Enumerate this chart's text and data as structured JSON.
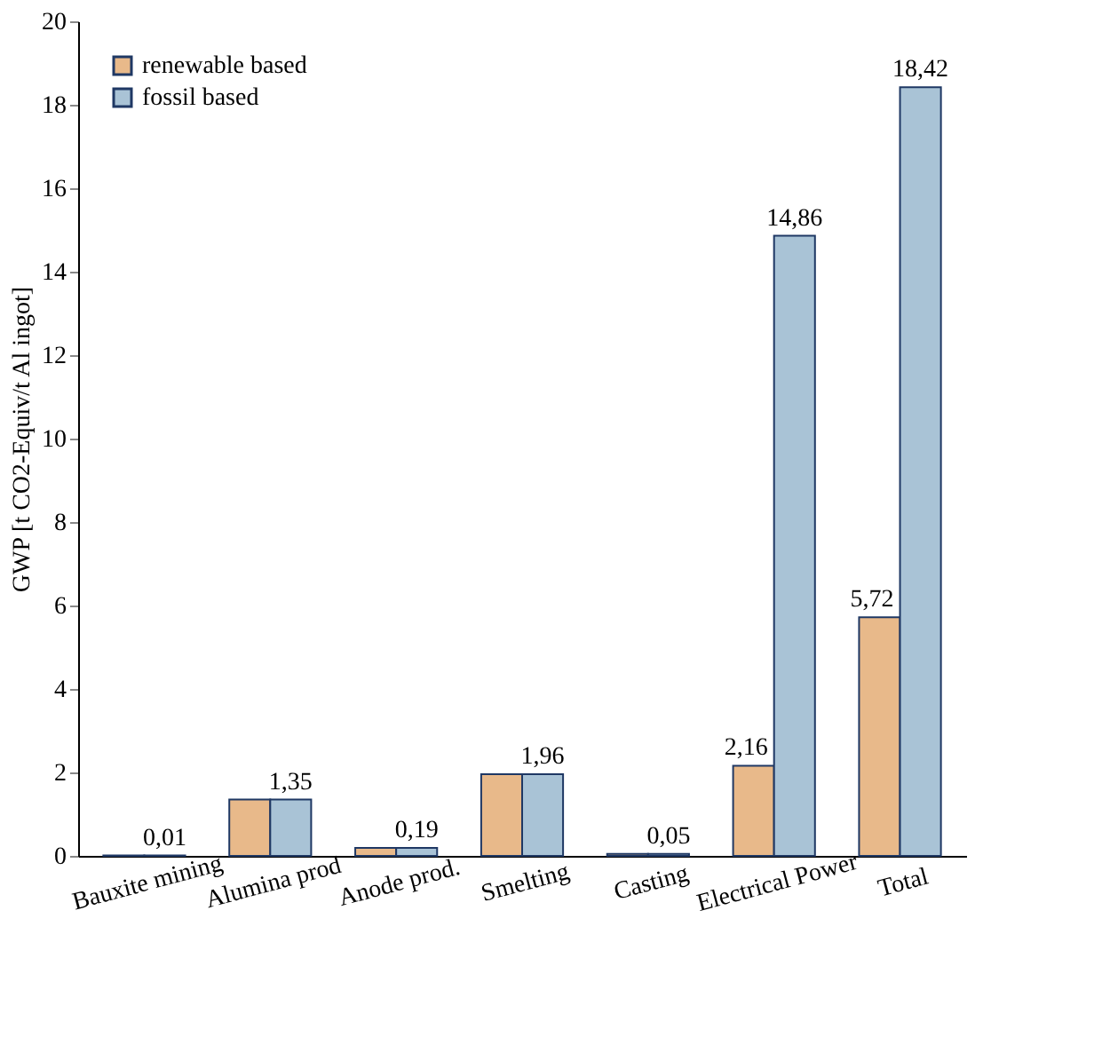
{
  "chart_data": {
    "type": "bar",
    "ylabel": "GWP [t CO2-Equiv/t  Al ingot]",
    "categories": [
      "Bauxite mining",
      "Alumina prod",
      "Anode prod.",
      "Smelting",
      "Casting",
      "Electrical Power",
      "Total"
    ],
    "series": [
      {
        "name": "renewable based",
        "color": "#e8b98a",
        "values": [
          0.01,
          1.35,
          0.19,
          1.96,
          0.05,
          2.16,
          5.72
        ],
        "value_labels": [
          null,
          null,
          null,
          null,
          null,
          "2,16",
          "5,72"
        ]
      },
      {
        "name": "fossil based",
        "color": "#a9c3d6",
        "values": [
          0.01,
          1.35,
          0.19,
          1.96,
          0.05,
          14.86,
          18.42
        ],
        "value_labels": [
          "0,01",
          "1,35",
          "0,19",
          "1,96",
          "0,05",
          "14,86",
          "18,42"
        ]
      }
    ],
    "ylim": [
      0,
      20
    ],
    "yticks": [
      0,
      2,
      4,
      6,
      8,
      10,
      12,
      14,
      16,
      18,
      20
    ],
    "grid": false,
    "legend": "top left"
  }
}
